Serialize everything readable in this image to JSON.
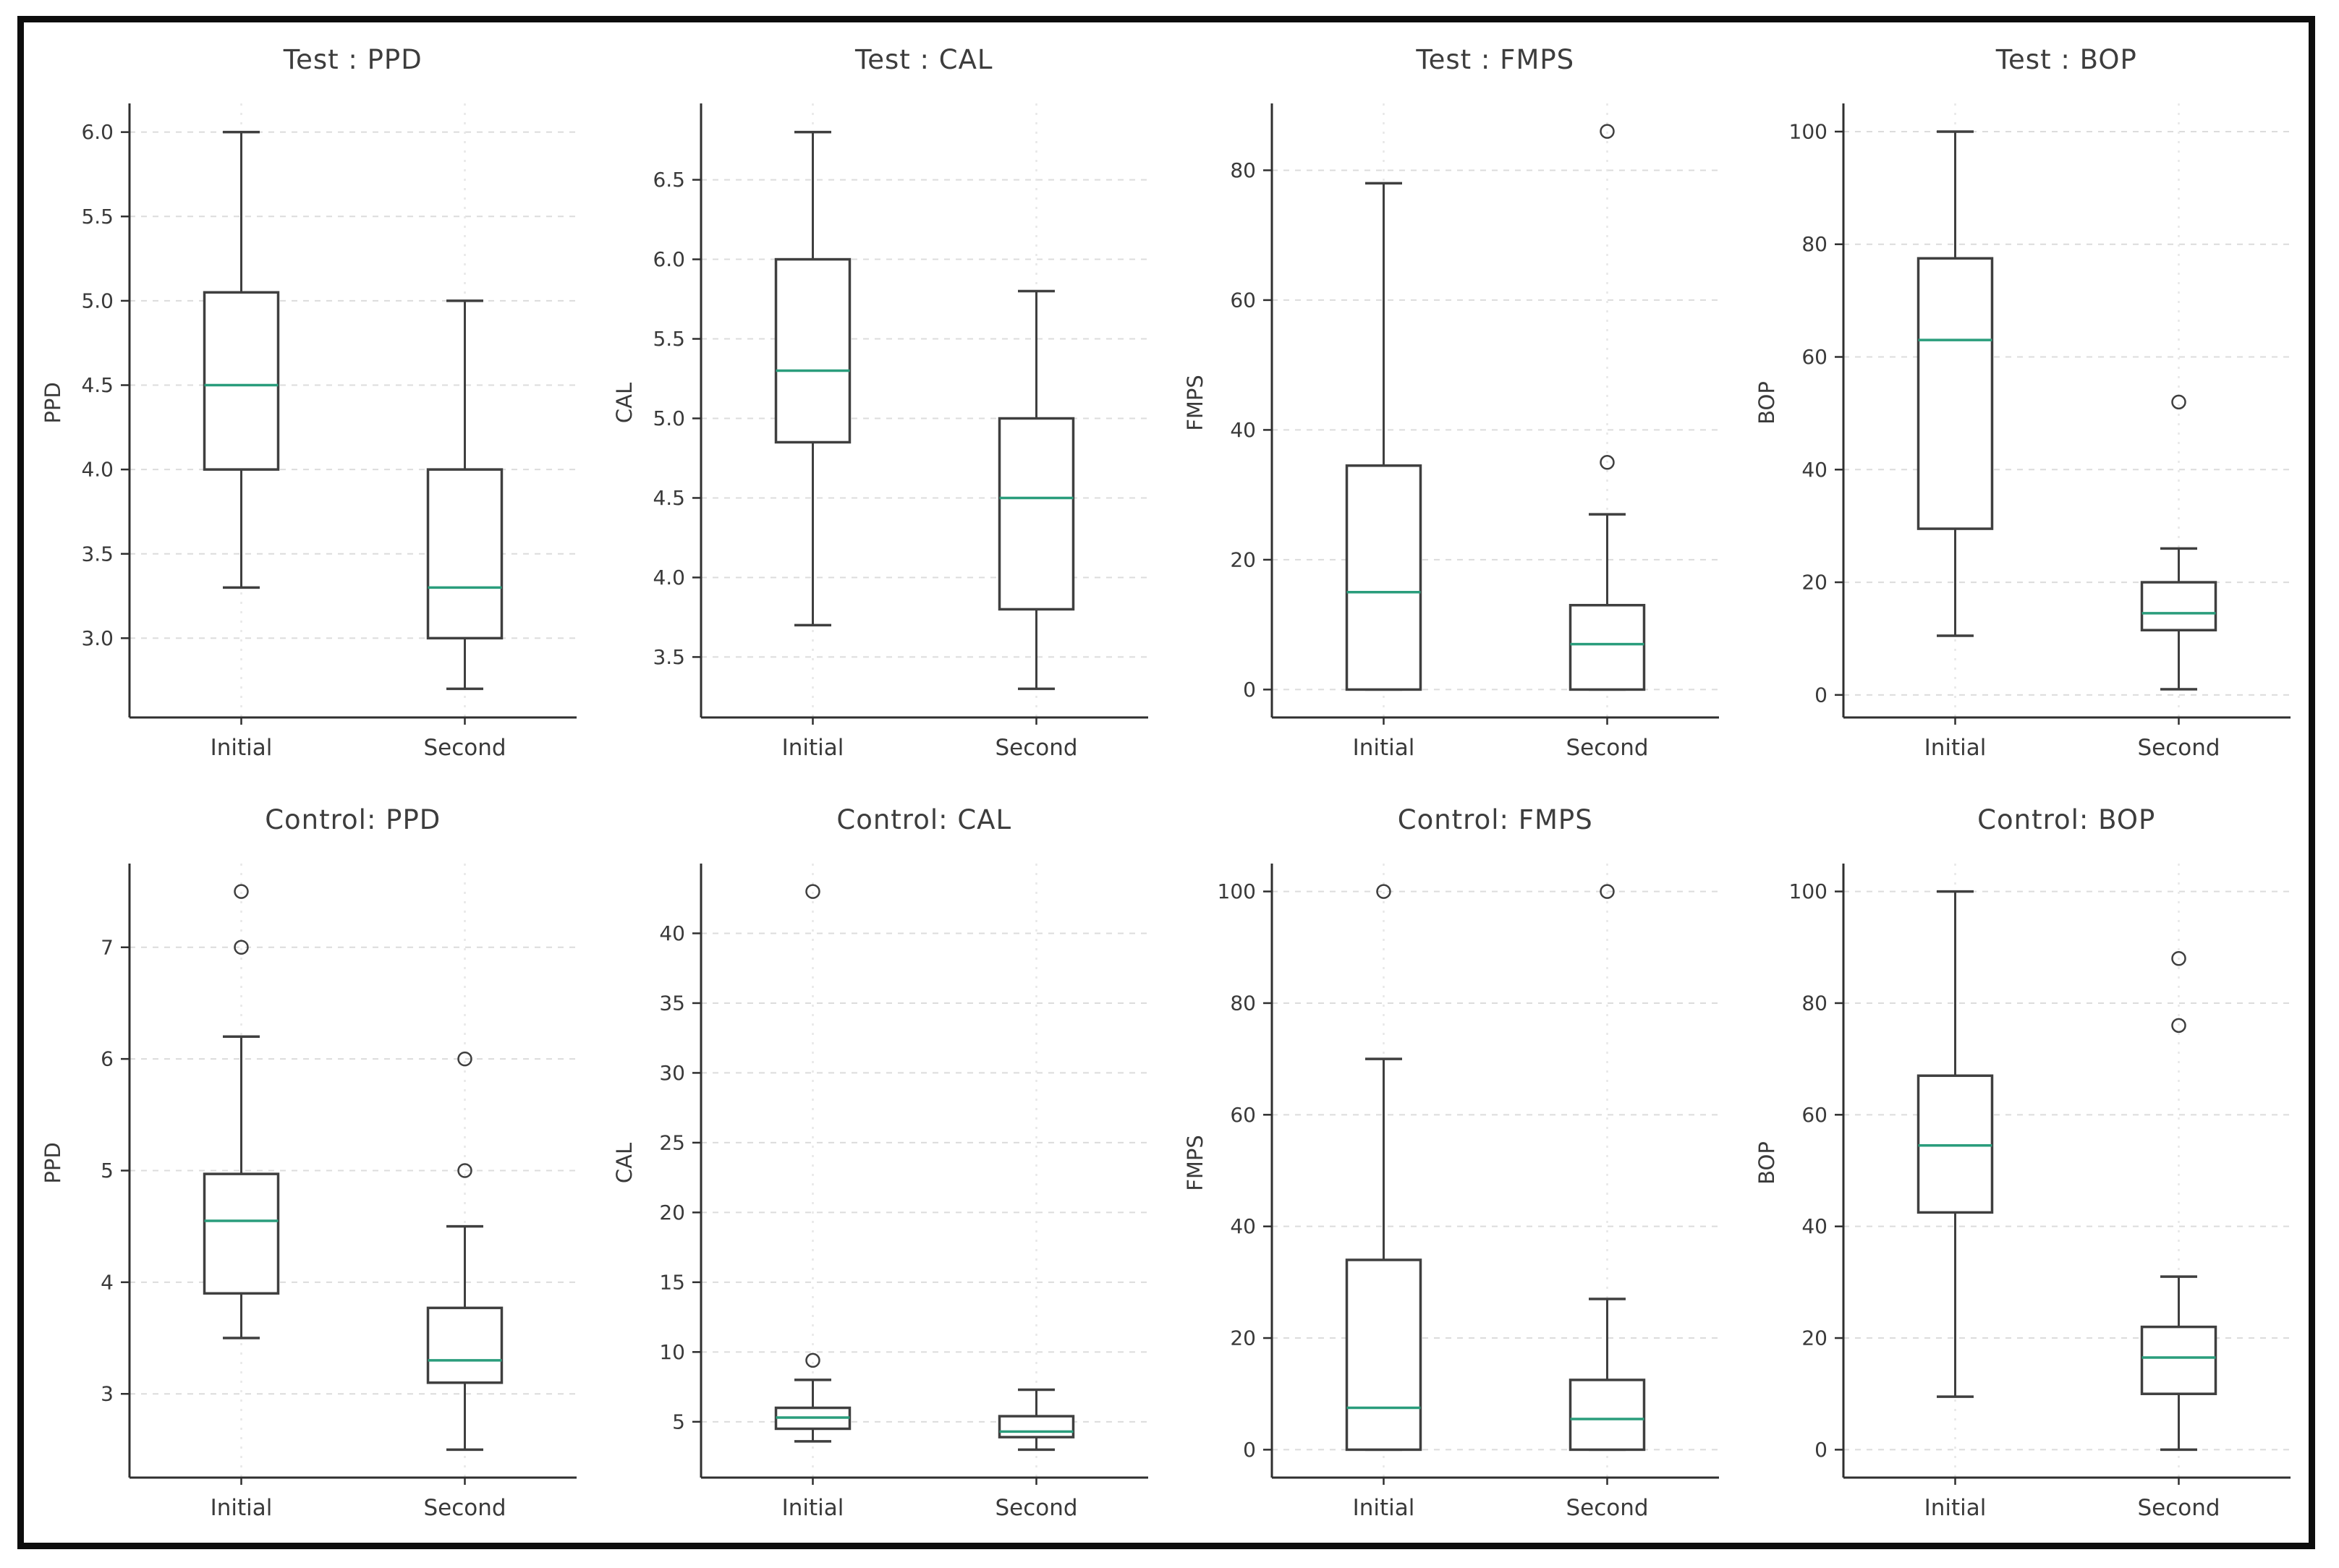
{
  "style": {
    "median_color": "#2a9d7c",
    "box_color": "#3f3f3f",
    "grid_color": "#dcdcdc",
    "vgrid_color": "#e7e7e7",
    "spine_color": "#2f2f2f",
    "text_color": "#3a3a3a",
    "frame_color": "#0d0d0d",
    "background": "#ffffff"
  },
  "chart_data": [
    {
      "type": "box",
      "title": "Test : PPD",
      "ylabel": "PPD",
      "xlabel": "",
      "categories": [
        "Initial",
        "Second"
      ],
      "yticks": [
        3.0,
        3.5,
        4.0,
        4.5,
        5.0,
        5.5,
        6.0
      ],
      "ytick_labels": [
        "3.0",
        "3.5",
        "4.0",
        "4.5",
        "5.0",
        "5.5",
        "6.0"
      ],
      "ylim": [
        2.53,
        6.17
      ],
      "grid": true,
      "series": [
        {
          "category": "Initial",
          "whisker_low": 3.3,
          "q1": 4.0,
          "median": 4.5,
          "q3": 5.05,
          "whisker_high": 6.0,
          "outliers": []
        },
        {
          "category": "Second",
          "whisker_low": 2.7,
          "q1": 3.0,
          "median": 3.3,
          "q3": 4.0,
          "whisker_high": 5.0,
          "outliers": []
        }
      ]
    },
    {
      "type": "box",
      "title": "Test : CAL",
      "ylabel": "CAL",
      "xlabel": "",
      "categories": [
        "Initial",
        "Second"
      ],
      "yticks": [
        3.5,
        4.0,
        4.5,
        5.0,
        5.5,
        6.0,
        6.5
      ],
      "ytick_labels": [
        "3.5",
        "4.0",
        "4.5",
        "5.0",
        "5.5",
        "6.0",
        "6.5"
      ],
      "ylim": [
        3.12,
        6.98
      ],
      "grid": true,
      "series": [
        {
          "category": "Initial",
          "whisker_low": 3.7,
          "q1": 4.85,
          "median": 5.3,
          "q3": 6.0,
          "whisker_high": 6.8,
          "outliers": []
        },
        {
          "category": "Second",
          "whisker_low": 3.3,
          "q1": 3.8,
          "median": 4.5,
          "q3": 5.0,
          "whisker_high": 5.8,
          "outliers": []
        }
      ]
    },
    {
      "type": "box",
      "title": "Test : FMPS",
      "ylabel": "FMPS",
      "xlabel": "",
      "categories": [
        "Initial",
        "Second"
      ],
      "yticks": [
        0,
        20,
        40,
        60,
        80
      ],
      "ytick_labels": [
        "0",
        "20",
        "40",
        "60",
        "80"
      ],
      "ylim": [
        -4.3,
        90.3
      ],
      "grid": true,
      "series": [
        {
          "category": "Initial",
          "whisker_low": 0,
          "q1": 0,
          "median": 15,
          "q3": 34.5,
          "whisker_high": 78,
          "outliers": []
        },
        {
          "category": "Second",
          "whisker_low": 0,
          "q1": 0,
          "median": 7,
          "q3": 13,
          "whisker_high": 27,
          "outliers": [
            35,
            86
          ]
        }
      ]
    },
    {
      "type": "box",
      "title": "Test : BOP",
      "ylabel": "BOP",
      "xlabel": "",
      "categories": [
        "Initial",
        "Second"
      ],
      "yticks": [
        0,
        20,
        40,
        60,
        80,
        100
      ],
      "ytick_labels": [
        "0",
        "20",
        "40",
        "60",
        "80",
        "100"
      ],
      "ylim": [
        -4.0,
        105.0
      ],
      "grid": true,
      "series": [
        {
          "category": "Initial",
          "whisker_low": 10.5,
          "q1": 29.5,
          "median": 63,
          "q3": 77.5,
          "whisker_high": 100,
          "outliers": []
        },
        {
          "category": "Second",
          "whisker_low": 1,
          "q1": 11.5,
          "median": 14.5,
          "q3": 20,
          "whisker_high": 26,
          "outliers": [
            52
          ]
        }
      ]
    },
    {
      "type": "box",
      "title": "Control: PPD",
      "ylabel": "PPD",
      "xlabel": "",
      "categories": [
        "Initial",
        "Second"
      ],
      "yticks": [
        3,
        4,
        5,
        6,
        7
      ],
      "ytick_labels": [
        "3",
        "4",
        "5",
        "6",
        "7"
      ],
      "ylim": [
        2.25,
        7.75
      ],
      "grid": true,
      "series": [
        {
          "category": "Initial",
          "whisker_low": 3.5,
          "q1": 3.9,
          "median": 4.55,
          "q3": 4.97,
          "whisker_high": 6.2,
          "outliers": [
            7.0,
            7.5
          ]
        },
        {
          "category": "Second",
          "whisker_low": 2.5,
          "q1": 3.1,
          "median": 3.3,
          "q3": 3.77,
          "whisker_high": 4.5,
          "outliers": [
            5.0,
            6.0
          ]
        }
      ]
    },
    {
      "type": "box",
      "title": "Control: CAL",
      "ylabel": "CAL",
      "xlabel": "",
      "categories": [
        "Initial",
        "Second"
      ],
      "yticks": [
        5,
        10,
        15,
        20,
        25,
        30,
        35,
        40
      ],
      "ytick_labels": [
        "5",
        "10",
        "15",
        "20",
        "25",
        "30",
        "35",
        "40"
      ],
      "ylim": [
        1.0,
        45.0
      ],
      "grid": true,
      "series": [
        {
          "category": "Initial",
          "whisker_low": 3.6,
          "q1": 4.5,
          "median": 5.3,
          "q3": 6.0,
          "whisker_high": 8.0,
          "outliers": [
            9.4,
            43
          ]
        },
        {
          "category": "Second",
          "whisker_low": 3.0,
          "q1": 3.9,
          "median": 4.3,
          "q3": 5.4,
          "whisker_high": 7.3,
          "outliers": []
        }
      ]
    },
    {
      "type": "box",
      "title": "Control: FMPS",
      "ylabel": "FMPS",
      "xlabel": "",
      "categories": [
        "Initial",
        "Second"
      ],
      "yticks": [
        0,
        20,
        40,
        60,
        80,
        100
      ],
      "ytick_labels": [
        "0",
        "20",
        "40",
        "60",
        "80",
        "100"
      ],
      "ylim": [
        -5.0,
        105.0
      ],
      "grid": true,
      "series": [
        {
          "category": "Initial",
          "whisker_low": 0,
          "q1": 0,
          "median": 7.5,
          "q3": 34,
          "whisker_high": 70,
          "outliers": [
            100
          ]
        },
        {
          "category": "Second",
          "whisker_low": 0,
          "q1": 0,
          "median": 5.5,
          "q3": 12.5,
          "whisker_high": 27,
          "outliers": [
            100
          ]
        }
      ]
    },
    {
      "type": "box",
      "title": "Control: BOP",
      "ylabel": "BOP",
      "xlabel": "",
      "categories": [
        "Initial",
        "Second"
      ],
      "yticks": [
        0,
        20,
        40,
        60,
        80,
        100
      ],
      "ytick_labels": [
        "0",
        "20",
        "40",
        "60",
        "80",
        "100"
      ],
      "ylim": [
        -5.0,
        105.0
      ],
      "grid": true,
      "series": [
        {
          "category": "Initial",
          "whisker_low": 9.5,
          "q1": 42.5,
          "median": 54.5,
          "q3": 67,
          "whisker_high": 100,
          "outliers": []
        },
        {
          "category": "Second",
          "whisker_low": 0,
          "q1": 10,
          "median": 16.5,
          "q3": 22,
          "whisker_high": 31,
          "outliers": [
            76,
            88
          ]
        }
      ]
    }
  ]
}
